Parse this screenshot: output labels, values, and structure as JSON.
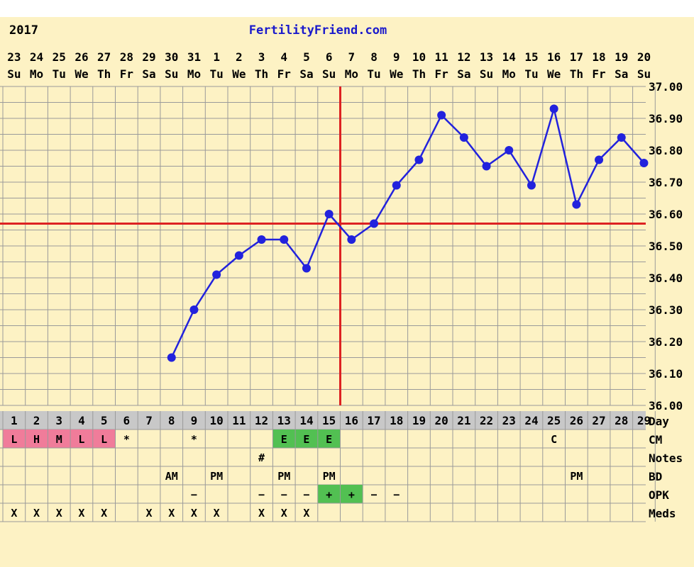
{
  "header": {
    "year": "2017",
    "site": "FertilityFriend.com"
  },
  "chart_data": {
    "type": "line",
    "title": "",
    "xlabel": "",
    "ylabel": "",
    "ylim": [
      36.0,
      37.0
    ],
    "y_ticks": [
      "36.00",
      "36.10",
      "36.20",
      "36.30",
      "36.40",
      "36.50",
      "36.60",
      "36.70",
      "36.80",
      "36.90",
      "37.00"
    ],
    "dates": [
      "23",
      "24",
      "25",
      "26",
      "27",
      "28",
      "29",
      "30",
      "31",
      "1",
      "2",
      "3",
      "4",
      "5",
      "6",
      "7",
      "8",
      "9",
      "10",
      "11",
      "12",
      "13",
      "14",
      "15",
      "16",
      "17",
      "18",
      "19",
      "20"
    ],
    "weekdays": [
      "Su",
      "Mo",
      "Tu",
      "We",
      "Th",
      "Fr",
      "Sa",
      "Su",
      "Mo",
      "Tu",
      "We",
      "Th",
      "Fr",
      "Sa",
      "Su",
      "Mo",
      "Tu",
      "We",
      "Th",
      "Fr",
      "Sa",
      "Su",
      "Mo",
      "Tu",
      "We",
      "Th",
      "Fr",
      "Sa",
      "Su"
    ],
    "cycle_days": [
      "1",
      "2",
      "3",
      "4",
      "5",
      "6",
      "7",
      "8",
      "9",
      "10",
      "11",
      "12",
      "13",
      "14",
      "15",
      "16",
      "17",
      "18",
      "19",
      "20",
      "21",
      "22",
      "23",
      "24",
      "25",
      "26",
      "27",
      "28",
      "29"
    ],
    "series": [
      {
        "values": [
          null,
          null,
          null,
          null,
          null,
          null,
          null,
          36.15,
          36.3,
          36.41,
          36.47,
          36.52,
          36.52,
          36.43,
          36.6,
          36.52,
          36.57,
          36.69,
          36.77,
          36.91,
          36.84,
          36.75,
          36.8,
          36.69,
          36.93,
          36.63,
          36.77,
          36.84,
          36.76
        ],
        "color": "#2222dd"
      }
    ],
    "coverline": 36.57,
    "ovulation_day": "16",
    "line_color": "#dd2222",
    "grid": true,
    "rows": [
      {
        "label": "Day",
        "cells": []
      },
      {
        "label": "CM",
        "cells": [
          "L",
          "H",
          "M",
          "L",
          "L",
          "*",
          "",
          "",
          "*",
          "",
          "",
          "",
          "E",
          "E",
          "E",
          "",
          "",
          "",
          "",
          "",
          "",
          "",
          "",
          "",
          "C",
          "",
          "",
          "",
          ""
        ],
        "highlight": [
          "pink",
          "pink",
          "pink",
          "pink",
          "pink",
          "",
          "",
          "",
          "",
          "",
          "",
          "",
          "green",
          "green",
          "green",
          "",
          "",
          "",
          "",
          "",
          "",
          "",
          "",
          "",
          "",
          "",
          "",
          "",
          ""
        ]
      },
      {
        "label": "Notes",
        "cells": [
          "",
          "",
          "",
          "",
          "",
          "",
          "",
          "",
          "",
          "",
          "",
          "#",
          "",
          "",
          "",
          "",
          "",
          "",
          "",
          "",
          "",
          "",
          "",
          "",
          "",
          "",
          "",
          "",
          ""
        ]
      },
      {
        "label": "BD",
        "cells": [
          "",
          "",
          "",
          "",
          "",
          "",
          "",
          "AM",
          "",
          "PM",
          "",
          "",
          "PM",
          "",
          "PM",
          "",
          "",
          "",
          "",
          "",
          "",
          "",
          "",
          "",
          "",
          "PM",
          "",
          "",
          ""
        ]
      },
      {
        "label": "OPK",
        "cells": [
          "",
          "",
          "",
          "",
          "",
          "",
          "",
          "",
          "−",
          "",
          "",
          "−",
          "−",
          "−",
          "+",
          "+",
          "−",
          "−",
          "",
          "",
          "",
          "",
          "",
          "",
          "",
          "",
          "",
          "",
          ""
        ],
        "highlight": [
          "",
          "",
          "",
          "",
          "",
          "",
          "",
          "",
          "",
          "",
          "",
          "",
          "",
          "",
          "green",
          "green",
          "",
          "",
          "",
          "",
          "",
          "",
          "",
          "",
          "",
          "",
          "",
          "",
          ""
        ]
      },
      {
        "label": "Meds",
        "cells": [
          "X",
          "X",
          "X",
          "X",
          "X",
          "",
          "X",
          "X",
          "X",
          "X",
          "",
          "X",
          "X",
          "X",
          "",
          "",
          "",
          "",
          "",
          "",
          "",
          "",
          "",
          "",
          "",
          "",
          "",
          "",
          ""
        ]
      }
    ],
    "colors": {
      "background": "#fdf2c4",
      "grid": "#9a9a9a",
      "day_row": "#c8c8c8",
      "pink": "#f07c9a",
      "green": "#52c052"
    }
  }
}
